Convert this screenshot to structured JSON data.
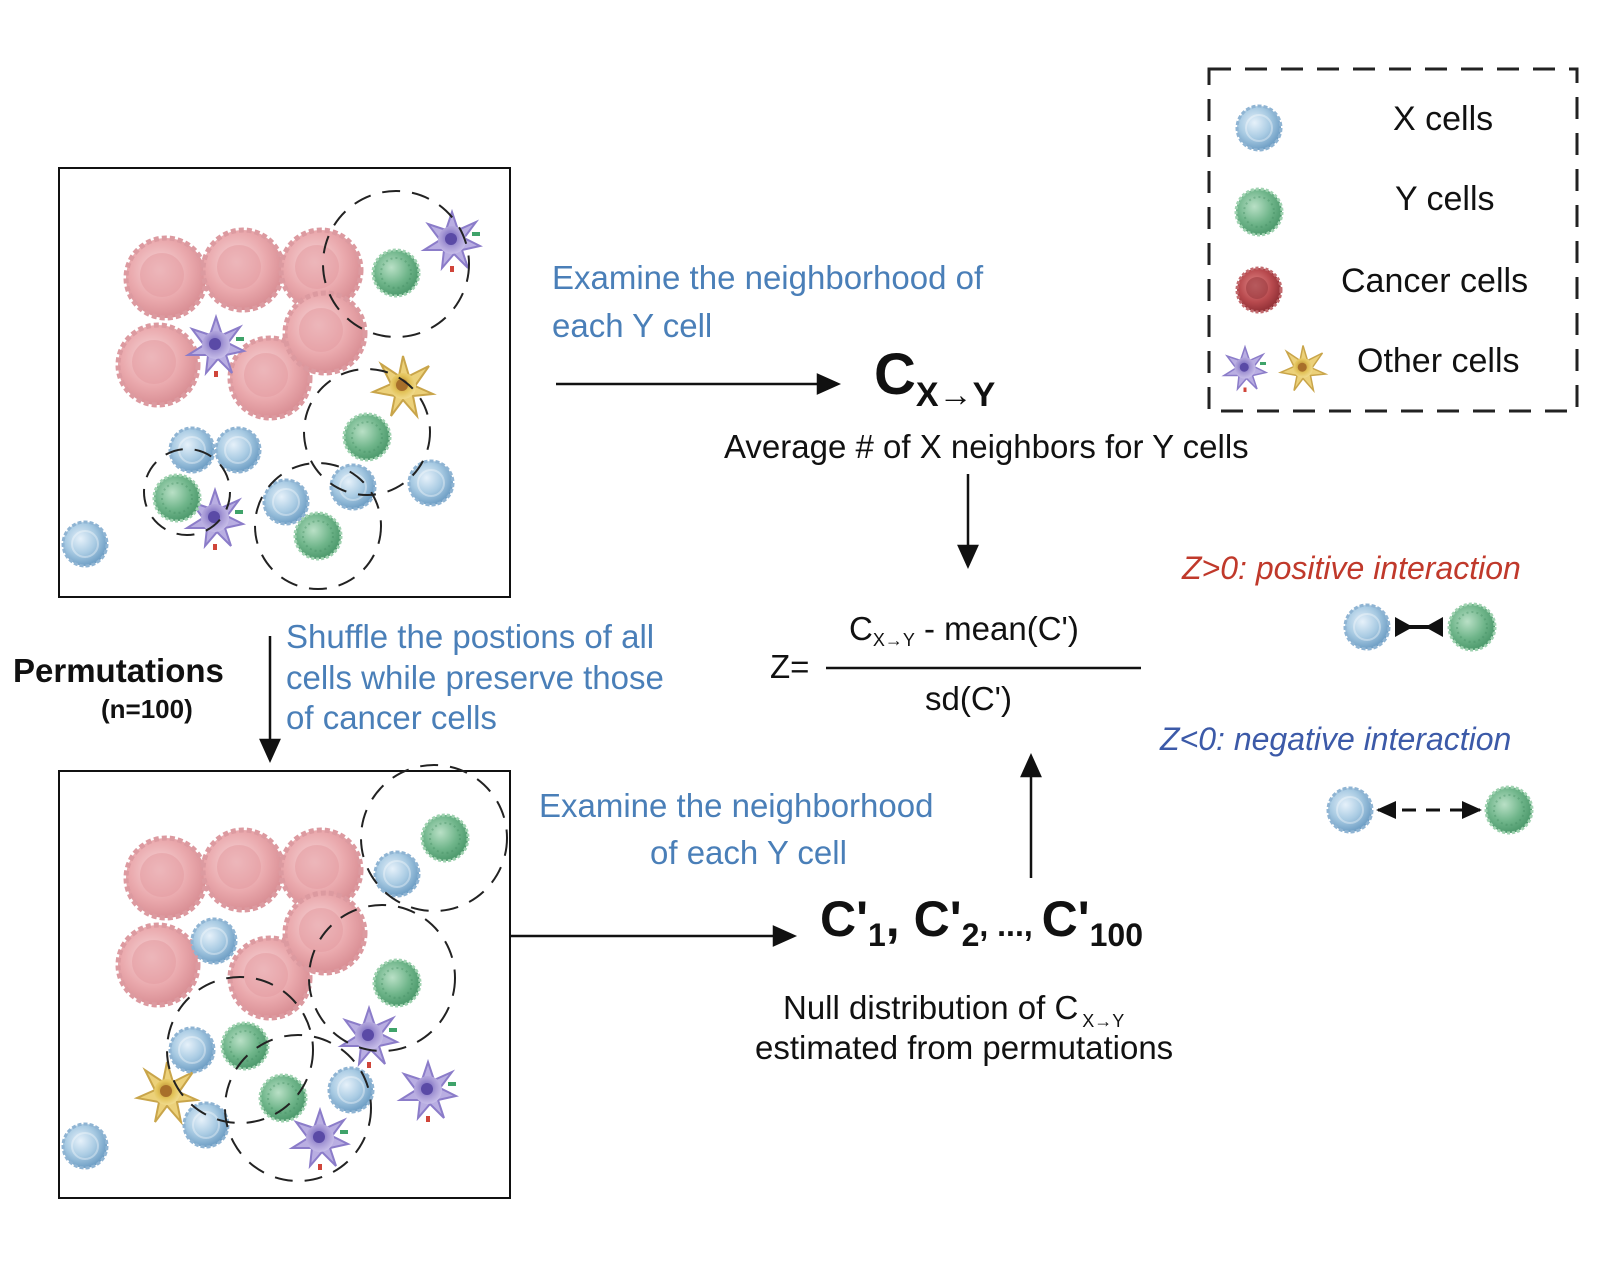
{
  "legend": {
    "x_cells": "X cells",
    "y_cells": "Y cells",
    "cancer_cells": "Cancer cells",
    "other_cells": "Other cells"
  },
  "step1": {
    "line1": "Examine the neighborhood of",
    "line2": "each Y cell"
  },
  "cxy": {
    "main": "C",
    "sub": "X→Y",
    "caption": "Average # of X neighbors for Y cells"
  },
  "permutation": {
    "title": "Permutations",
    "n": "(n=100)",
    "line1": "Shuffle the postions of all",
    "line2": "cells while preserve those",
    "line3": "of cancer cells"
  },
  "formula": {
    "z": "Z=",
    "num_c": "C",
    "num_sub": "X→Y",
    "num_rest": " - mean(C')",
    "den": "sd(C')"
  },
  "step2": {
    "line1": "Examine the neighborhood",
    "line2": "of  each Y cell"
  },
  "null": {
    "c1": "C'",
    "s1": "1",
    "c2": ", C'",
    "s2": "2",
    "dots": ", ..., ",
    "c3": "C'",
    "s3": "100",
    "caption1": "Null distribution of C",
    "caption1_sub": "X→Y",
    "caption2": "estimated from permutations"
  },
  "interpretation": {
    "positive": "Z>0: positive interaction",
    "negative": "Z<0: negative interaction"
  },
  "colors": {
    "x_cell": "#a9cbe3",
    "y_cell": "#6fb58a",
    "cancer_cell": "#e8a3a8",
    "other_purple": "#a79ad6",
    "other_yellow": "#e3c35a",
    "positive": "#c0392b",
    "negative": "#3c5aa8",
    "step_text": "#4a7fb8"
  }
}
